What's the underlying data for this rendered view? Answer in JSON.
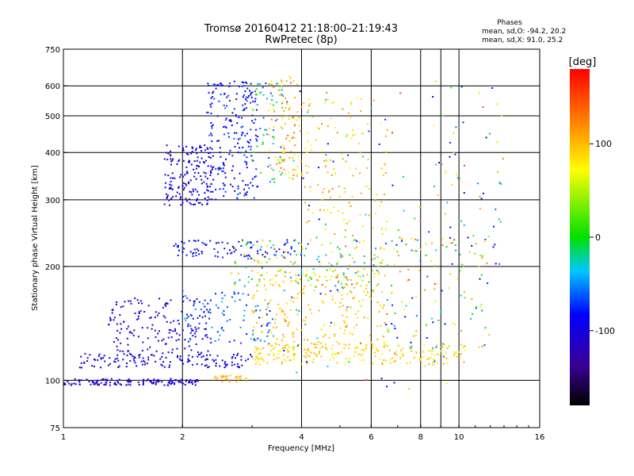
{
  "chart_data": {
    "type": "scatter",
    "title": "Tromsø 20160412 21:18:00–21:19:43",
    "subtitle": "RwPretec (8p)",
    "stats": {
      "heading": "Phases",
      "o_line": "mean, sd,O: -94.2, 20.2",
      "x_line": "mean, sd,X:  91.0, 25.2"
    },
    "xlabel": "Frequency [MHz]",
    "ylabel": "Stationary phase Virtual Height [km]",
    "x_scale": "log",
    "y_scale": "log",
    "xlim": [
      1,
      16
    ],
    "ylim": [
      75,
      750
    ],
    "x_ticks": [
      {
        "value": 1,
        "label": "1"
      },
      {
        "value": 2,
        "label": "2"
      },
      {
        "value": 4,
        "label": "4"
      },
      {
        "value": 6,
        "label": "6"
      },
      {
        "value": 8,
        "label": "8"
      },
      {
        "value": 10,
        "label": "10"
      },
      {
        "value": 16,
        "label": "16"
      }
    ],
    "y_ticks": [
      {
        "value": 75,
        "label": "75"
      },
      {
        "value": 100,
        "label": "100"
      },
      {
        "value": 200,
        "label": "200"
      },
      {
        "value": 300,
        "label": "300"
      },
      {
        "value": 400,
        "label": "400"
      },
      {
        "value": 500,
        "label": "500"
      },
      {
        "value": 600,
        "label": "600"
      },
      {
        "value": 750,
        "label": "750"
      }
    ],
    "grid_x": [
      2,
      4,
      6,
      8,
      9,
      10
    ],
    "grid_y": [
      100,
      200,
      300,
      400,
      500,
      600
    ],
    "grid": true,
    "colorbar": {
      "label": "[deg]",
      "min": -180,
      "max": 180,
      "ticks": [
        {
          "value": 100,
          "label": "100"
        },
        {
          "value": 0,
          "label": "0"
        },
        {
          "value": -100,
          "label": "-100"
        }
      ]
    },
    "clusters": [
      {
        "fmin": 1.0,
        "fmax": 2.2,
        "hmin": 97,
        "hmax": 101,
        "phase_min": -115,
        "phase_max": -95,
        "count": 140
      },
      {
        "fmin": 1.1,
        "fmax": 3.0,
        "hmin": 108,
        "hmax": 118,
        "phase_min": -115,
        "phase_max": -85,
        "count": 140
      },
      {
        "fmin": 1.3,
        "fmax": 2.4,
        "hmin": 118,
        "hmax": 165,
        "phase_min": -115,
        "phase_max": -85,
        "count": 170
      },
      {
        "fmin": 2.4,
        "fmax": 2.9,
        "hmin": 99,
        "hmax": 103,
        "phase_min": 95,
        "phase_max": 110,
        "count": 30
      },
      {
        "fmin": 1.8,
        "fmax": 2.4,
        "hmin": 290,
        "hmax": 420,
        "phase_min": -115,
        "phase_max": -90,
        "count": 170
      },
      {
        "fmin": 2.3,
        "fmax": 3.1,
        "hmin": 300,
        "hmax": 620,
        "phase_min": -110,
        "phase_max": -60,
        "count": 220
      },
      {
        "fmin": 3.0,
        "fmax": 3.6,
        "hmin": 330,
        "hmax": 620,
        "phase_min": -70,
        "phase_max": 20,
        "count": 60
      },
      {
        "fmin": 3.3,
        "fmax": 4.0,
        "hmin": 340,
        "hmax": 640,
        "phase_min": 60,
        "phase_max": 140,
        "count": 90
      },
      {
        "fmin": 1.9,
        "fmax": 4.0,
        "hmin": 210,
        "hmax": 235,
        "phase_min": -110,
        "phase_max": -70,
        "count": 90
      },
      {
        "fmin": 2.6,
        "fmax": 6.5,
        "hmin": 175,
        "hmax": 235,
        "phase_min": -60,
        "phase_max": 110,
        "count": 160
      },
      {
        "fmin": 3.0,
        "fmax": 6.5,
        "hmin": 120,
        "hmax": 195,
        "phase_min": 80,
        "phase_max": 110,
        "count": 220
      },
      {
        "fmin": 2.0,
        "fmax": 3.4,
        "hmin": 125,
        "hmax": 175,
        "phase_min": -95,
        "phase_max": -30,
        "count": 90
      },
      {
        "fmin": 3.0,
        "fmax": 10.5,
        "hmin": 110,
        "hmax": 125,
        "phase_min": 60,
        "phase_max": 110,
        "count": 200
      },
      {
        "fmin": 4.0,
        "fmax": 6.6,
        "hmin": 240,
        "hmax": 560,
        "phase_min": 70,
        "phase_max": 120,
        "count": 120
      },
      {
        "fmin": 6.5,
        "fmax": 12.0,
        "hmin": 120,
        "hmax": 240,
        "phase_min": -110,
        "phase_max": 130,
        "count": 110
      },
      {
        "fmin": 8.5,
        "fmax": 13.0,
        "hmin": 200,
        "hmax": 620,
        "phase_min": -120,
        "phase_max": 140,
        "count": 50
      },
      {
        "fmin": 3.5,
        "fmax": 10.5,
        "hmin": 95,
        "hmax": 630,
        "phase_min": -120,
        "phase_max": 160,
        "count": 140
      }
    ]
  }
}
